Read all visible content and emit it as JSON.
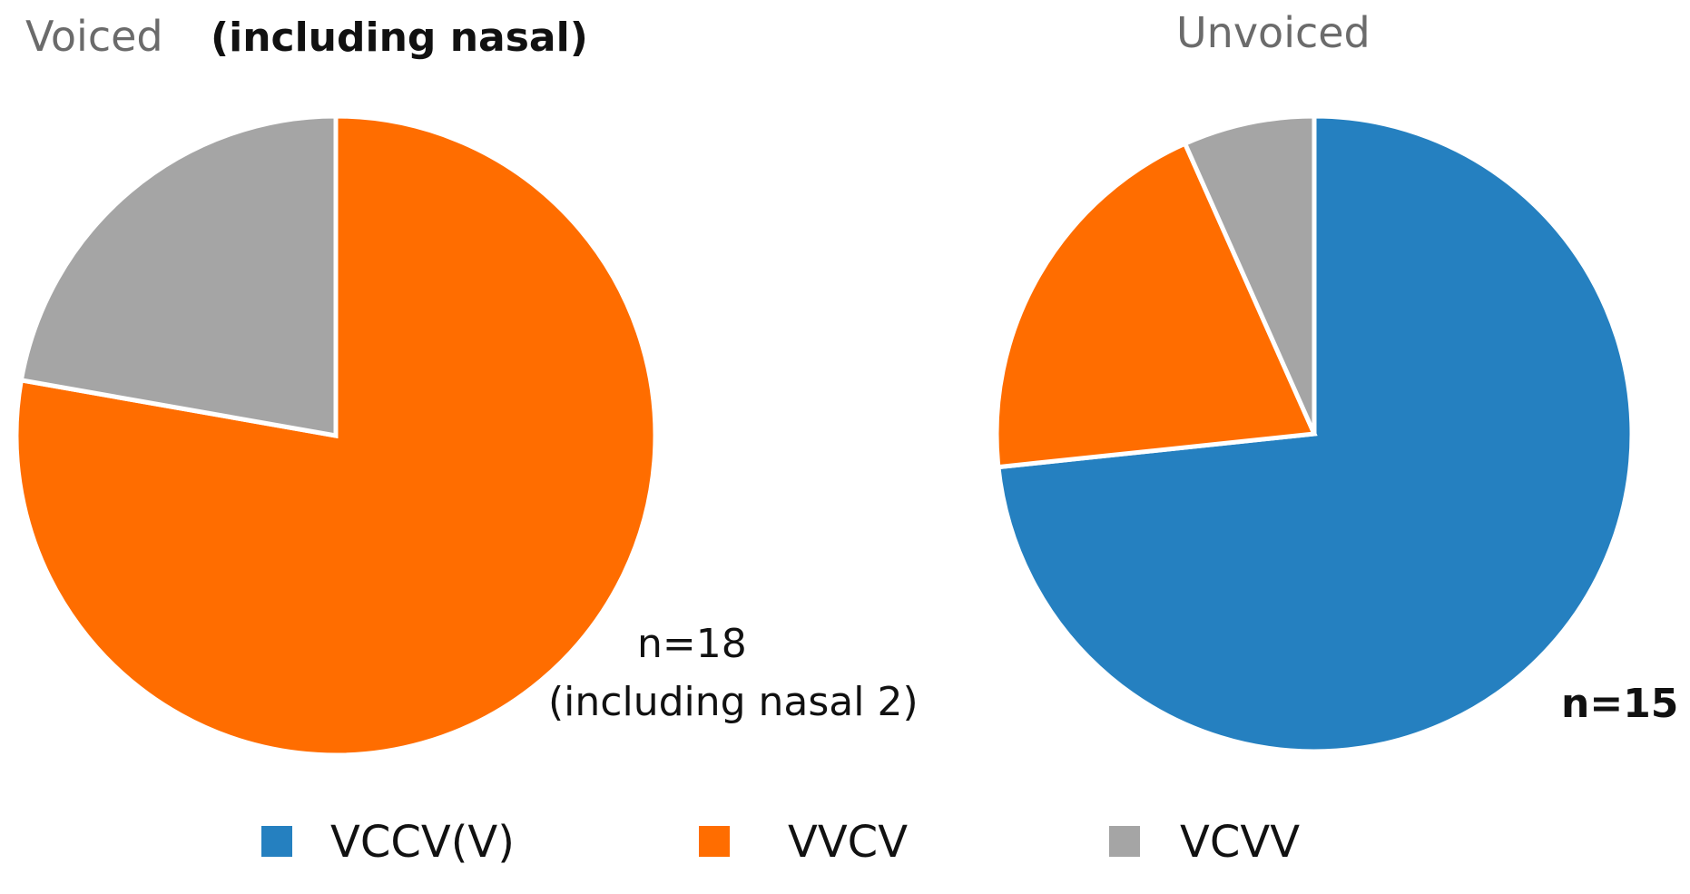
{
  "chart_data": [
    {
      "type": "pie",
      "title": "Voiced",
      "subtitle": "(including nasal)",
      "annotation": [
        "n=18",
        "(including nasal 2)"
      ],
      "slices": [
        {
          "label": "VCCV(V)",
          "value": 0,
          "color": "#2580c0"
        },
        {
          "label": "VVCV",
          "value": 14,
          "color": "#ff6d00"
        },
        {
          "label": "VCVV",
          "value": 4,
          "color": "#a5a5a5"
        }
      ]
    },
    {
      "type": "pie",
      "title": "Unvoiced",
      "subtitle": "",
      "annotation": [
        "n=15"
      ],
      "slices": [
        {
          "label": "VCCV(V)",
          "value": 11,
          "color": "#2580c0"
        },
        {
          "label": "VVCV",
          "value": 3,
          "color": "#ff6d00"
        },
        {
          "label": "VCVV",
          "value": 1,
          "color": "#a5a5a5"
        }
      ]
    }
  ],
  "legend": {
    "placement": "bottom",
    "entries": [
      {
        "label": "VCCV(V)",
        "color": "#2580c0"
      },
      {
        "label": "VVCV",
        "color": "#ff6d00"
      },
      {
        "label": "VCVV",
        "color": "#a5a5a5"
      }
    ]
  }
}
